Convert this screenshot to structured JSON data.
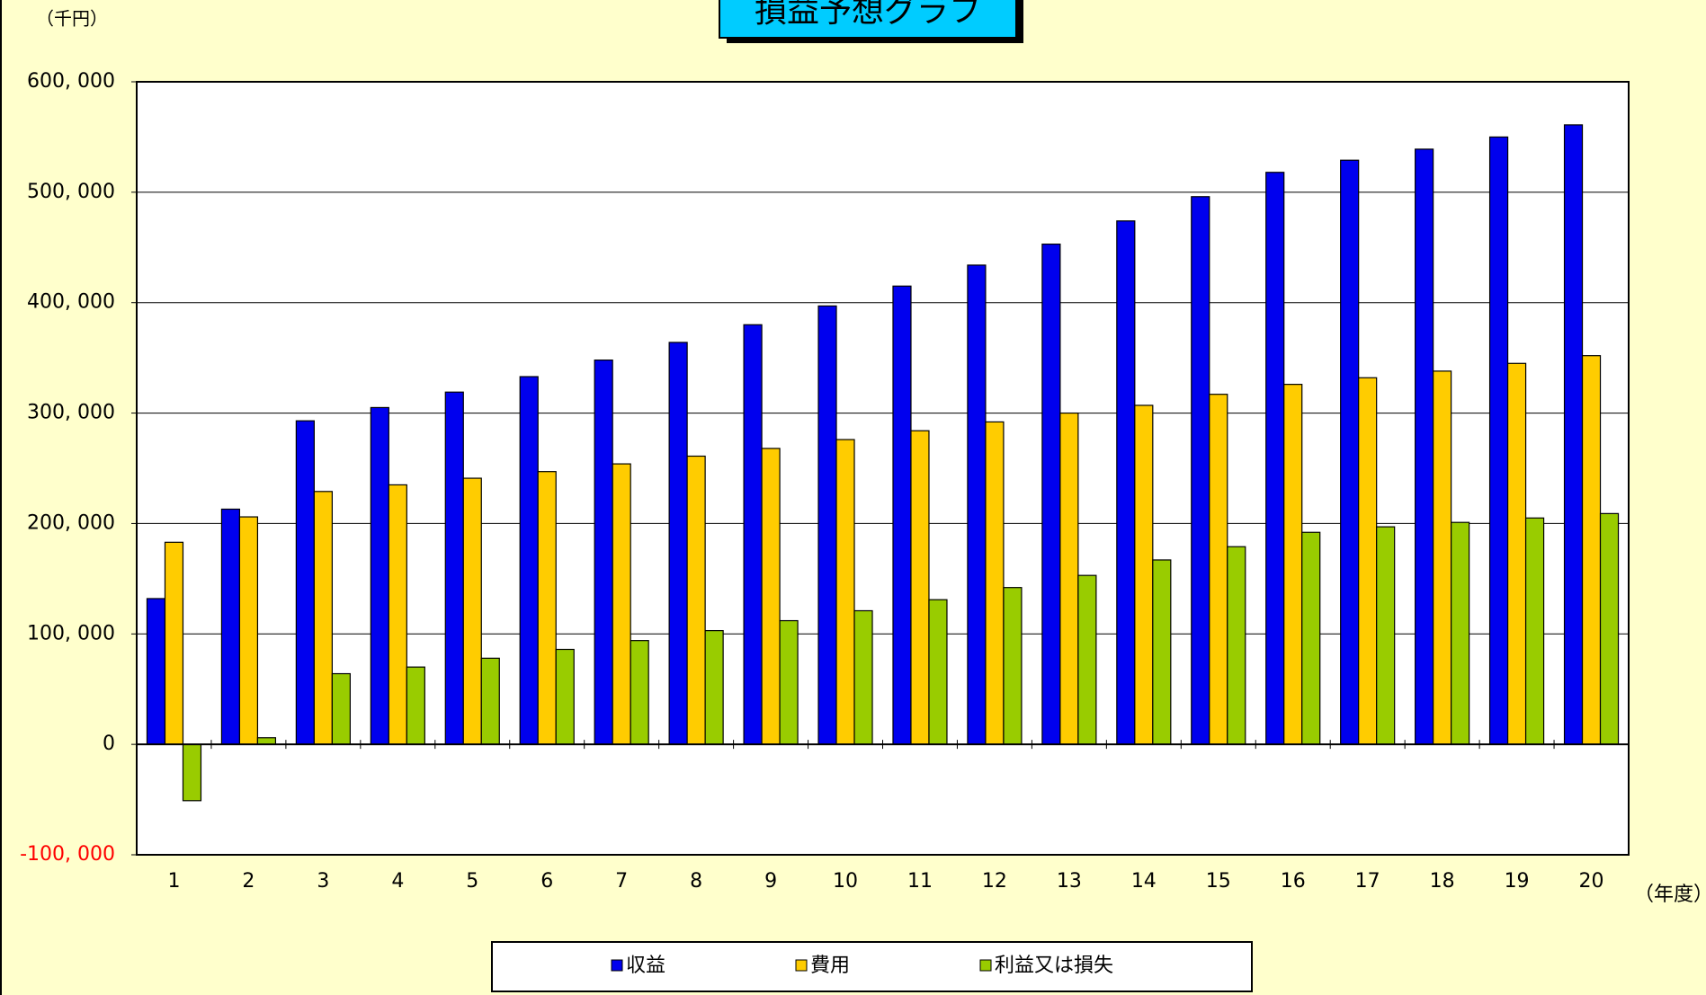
{
  "chart_data": {
    "type": "bar",
    "title": "損益予想グラフ",
    "y_unit_label": "（千円）",
    "x_unit_label": "（年度）",
    "categories": [
      "1",
      "2",
      "3",
      "4",
      "5",
      "6",
      "7",
      "8",
      "9",
      "10",
      "11",
      "12",
      "13",
      "14",
      "15",
      "16",
      "17",
      "18",
      "19",
      "20"
    ],
    "series": [
      {
        "name": "収益",
        "color": "#0000ee",
        "values": [
          132000,
          213000,
          293000,
          305000,
          319000,
          333000,
          348000,
          364000,
          380000,
          397000,
          415000,
          434000,
          453000,
          474000,
          496000,
          518000,
          529000,
          539000,
          550000,
          561000
        ]
      },
      {
        "name": "費用",
        "color": "#ffcc00",
        "values": [
          183000,
          206000,
          229000,
          235000,
          241000,
          247000,
          254000,
          261000,
          268000,
          276000,
          284000,
          292000,
          300000,
          307000,
          317000,
          326000,
          332000,
          338000,
          345000,
          352000
        ]
      },
      {
        "name": "利益又は損失",
        "color": "#99cc00",
        "values": [
          -51000,
          6000,
          64000,
          70000,
          78000,
          86000,
          94000,
          103000,
          112000,
          121000,
          131000,
          142000,
          153000,
          167000,
          179000,
          192000,
          197000,
          201000,
          205000,
          209000
        ]
      }
    ],
    "ylim": [
      -100000,
      600000
    ],
    "yticks": [
      {
        "value": -100000,
        "label": "-100, 000"
      },
      {
        "value": 0,
        "label": "0"
      },
      {
        "value": 100000,
        "label": "100, 000"
      },
      {
        "value": 200000,
        "label": "200, 000"
      },
      {
        "value": 300000,
        "label": "300, 000"
      },
      {
        "value": 400000,
        "label": "400, 000"
      },
      {
        "value": 500000,
        "label": "500, 000"
      },
      {
        "value": 600000,
        "label": "600, 000"
      }
    ],
    "negative_tick_color": "#ff0000",
    "grid": true,
    "legend": "bottom"
  }
}
